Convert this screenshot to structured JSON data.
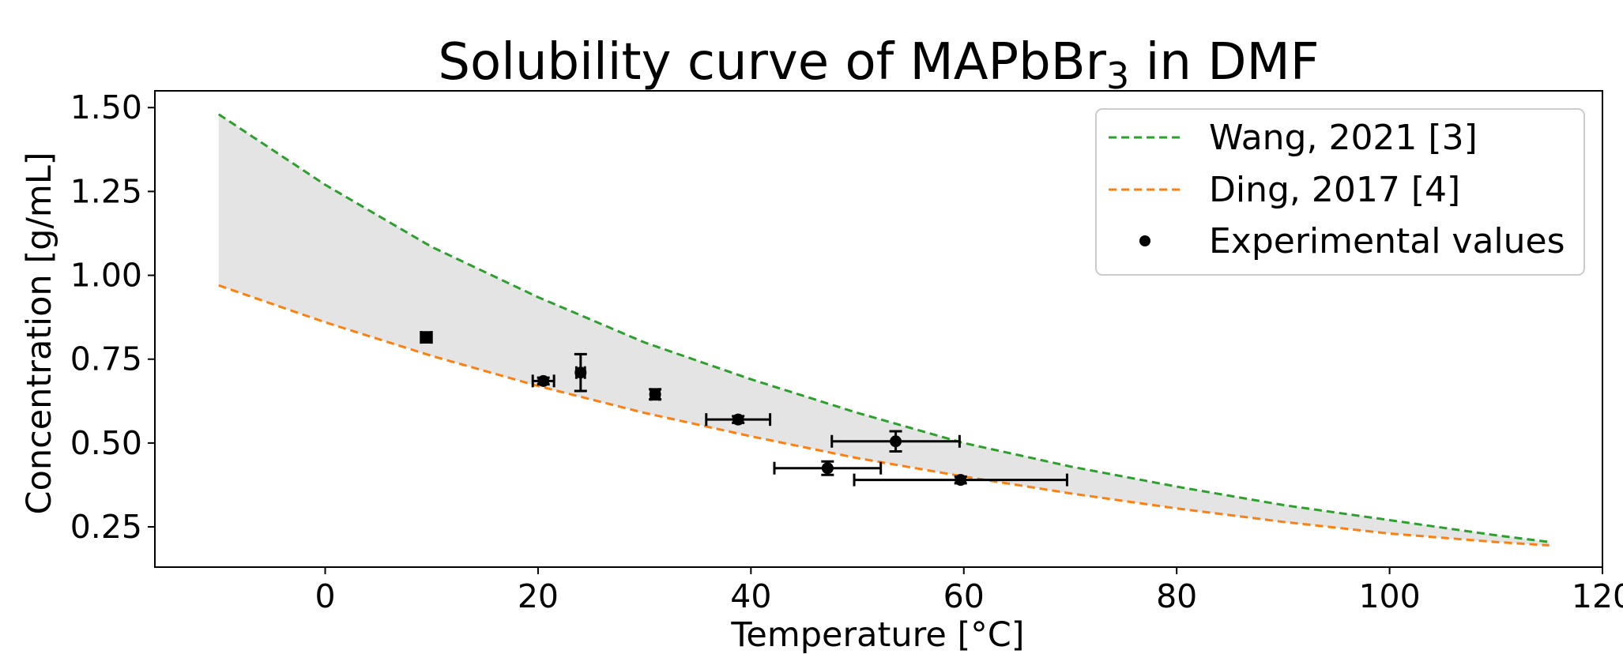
{
  "chart_data": {
    "type": "line",
    "title": "Solubility curve of MAPbBr",
    "title_subscript": "3",
    "title_suffix": " in DMF",
    "xlabel": "Temperature [°C]",
    "ylabel": "Concentration [g/mL]",
    "xlim": [
      -16,
      120
    ],
    "ylim": [
      0.13,
      1.55
    ],
    "xticks": [
      0,
      20,
      40,
      60,
      80,
      100,
      120
    ],
    "yticks": [
      0.25,
      0.5,
      0.75,
      1.0,
      1.25,
      1.5
    ],
    "xtick_labels": [
      "0",
      "20",
      "40",
      "60",
      "80",
      "100",
      "120"
    ],
    "ytick_labels": [
      "0.25",
      "0.50",
      "0.75",
      "1.00",
      "1.25",
      "1.50"
    ],
    "grid": false,
    "legend_position": "upper right",
    "series": [
      {
        "name": "Wang, 2021 [3]",
        "style": "dashed",
        "color": "#2ca02c",
        "x": [
          -10,
          0,
          10,
          20,
          30,
          40,
          50,
          60,
          70,
          80,
          90,
          100,
          110,
          115
        ],
        "y": [
          1.48,
          1.27,
          1.085,
          0.935,
          0.8,
          0.69,
          0.59,
          0.5,
          0.43,
          0.37,
          0.315,
          0.27,
          0.225,
          0.205
        ]
      },
      {
        "name": "Ding, 2017 [4]",
        "style": "dashed",
        "color": "#ff7f0e",
        "x": [
          -10,
          0,
          10,
          20,
          30,
          40,
          50,
          60,
          70,
          80,
          90,
          100,
          110,
          115
        ],
        "y": [
          0.97,
          0.86,
          0.76,
          0.67,
          0.59,
          0.52,
          0.455,
          0.4,
          0.35,
          0.305,
          0.265,
          0.23,
          0.205,
          0.195
        ]
      },
      {
        "name": "Experimental values",
        "style": "points",
        "color": "#000000",
        "points": [
          {
            "x": 9.5,
            "y": 0.815,
            "xerr": 0.5,
            "yerr": 0.015
          },
          {
            "x": 20.5,
            "y": 0.685,
            "xerr": 1.0,
            "yerr": 0.01
          },
          {
            "x": 24.0,
            "y": 0.71,
            "xerr": 0.4,
            "yerr": 0.055
          },
          {
            "x": 31.0,
            "y": 0.645,
            "xerr": 0.4,
            "yerr": 0.015
          },
          {
            "x": 38.8,
            "y": 0.57,
            "xerr": 3.0,
            "yerr": 0.01
          },
          {
            "x": 47.2,
            "y": 0.425,
            "xerr": 5.0,
            "yerr": 0.02
          },
          {
            "x": 53.6,
            "y": 0.505,
            "xerr": 6.0,
            "yerr": 0.03
          },
          {
            "x": 59.7,
            "y": 0.39,
            "xerr": 10.0,
            "yerr": 0.01
          }
        ]
      }
    ],
    "shaded_region": {
      "between": [
        "Wang, 2021 [3]",
        "Ding, 2017 [4]"
      ],
      "color": "#e4e4e4"
    }
  }
}
